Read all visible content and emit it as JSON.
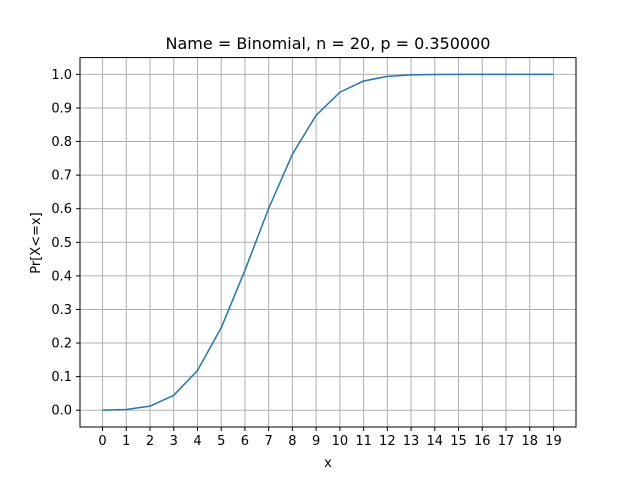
{
  "chart_data": {
    "type": "line",
    "title": "Name = Binomial, n = 20, p = 0.350000",
    "xlabel": "x",
    "ylabel": "Pr[X<=x]",
    "x": [
      0,
      1,
      2,
      3,
      4,
      5,
      6,
      7,
      8,
      9,
      10,
      11,
      12,
      13,
      14,
      15,
      16,
      17,
      18,
      19
    ],
    "series": [
      {
        "values": [
          0.0002,
          0.0021,
          0.0121,
          0.0444,
          0.1182,
          0.2454,
          0.4166,
          0.601,
          0.7624,
          0.8782,
          0.9468,
          0.9804,
          0.994,
          0.9985,
          0.9997,
          1.0,
          1.0,
          1.0,
          1.0,
          1.0
        ],
        "color": "#1f77b4"
      }
    ],
    "xticks": [
      "0",
      "1",
      "2",
      "3",
      "4",
      "5",
      "6",
      "7",
      "8",
      "9",
      "10",
      "11",
      "12",
      "13",
      "14",
      "15",
      "16",
      "17",
      "18",
      "19"
    ],
    "yticks": [
      "0.0",
      "0.1",
      "0.2",
      "0.3",
      "0.4",
      "0.5",
      "0.6",
      "0.7",
      "0.8",
      "0.9",
      "1.0"
    ],
    "xlim": [
      -0.95,
      19.95
    ],
    "ylim": [
      -0.05,
      1.05
    ],
    "grid": true,
    "grid_color": "#b0b0b0"
  }
}
